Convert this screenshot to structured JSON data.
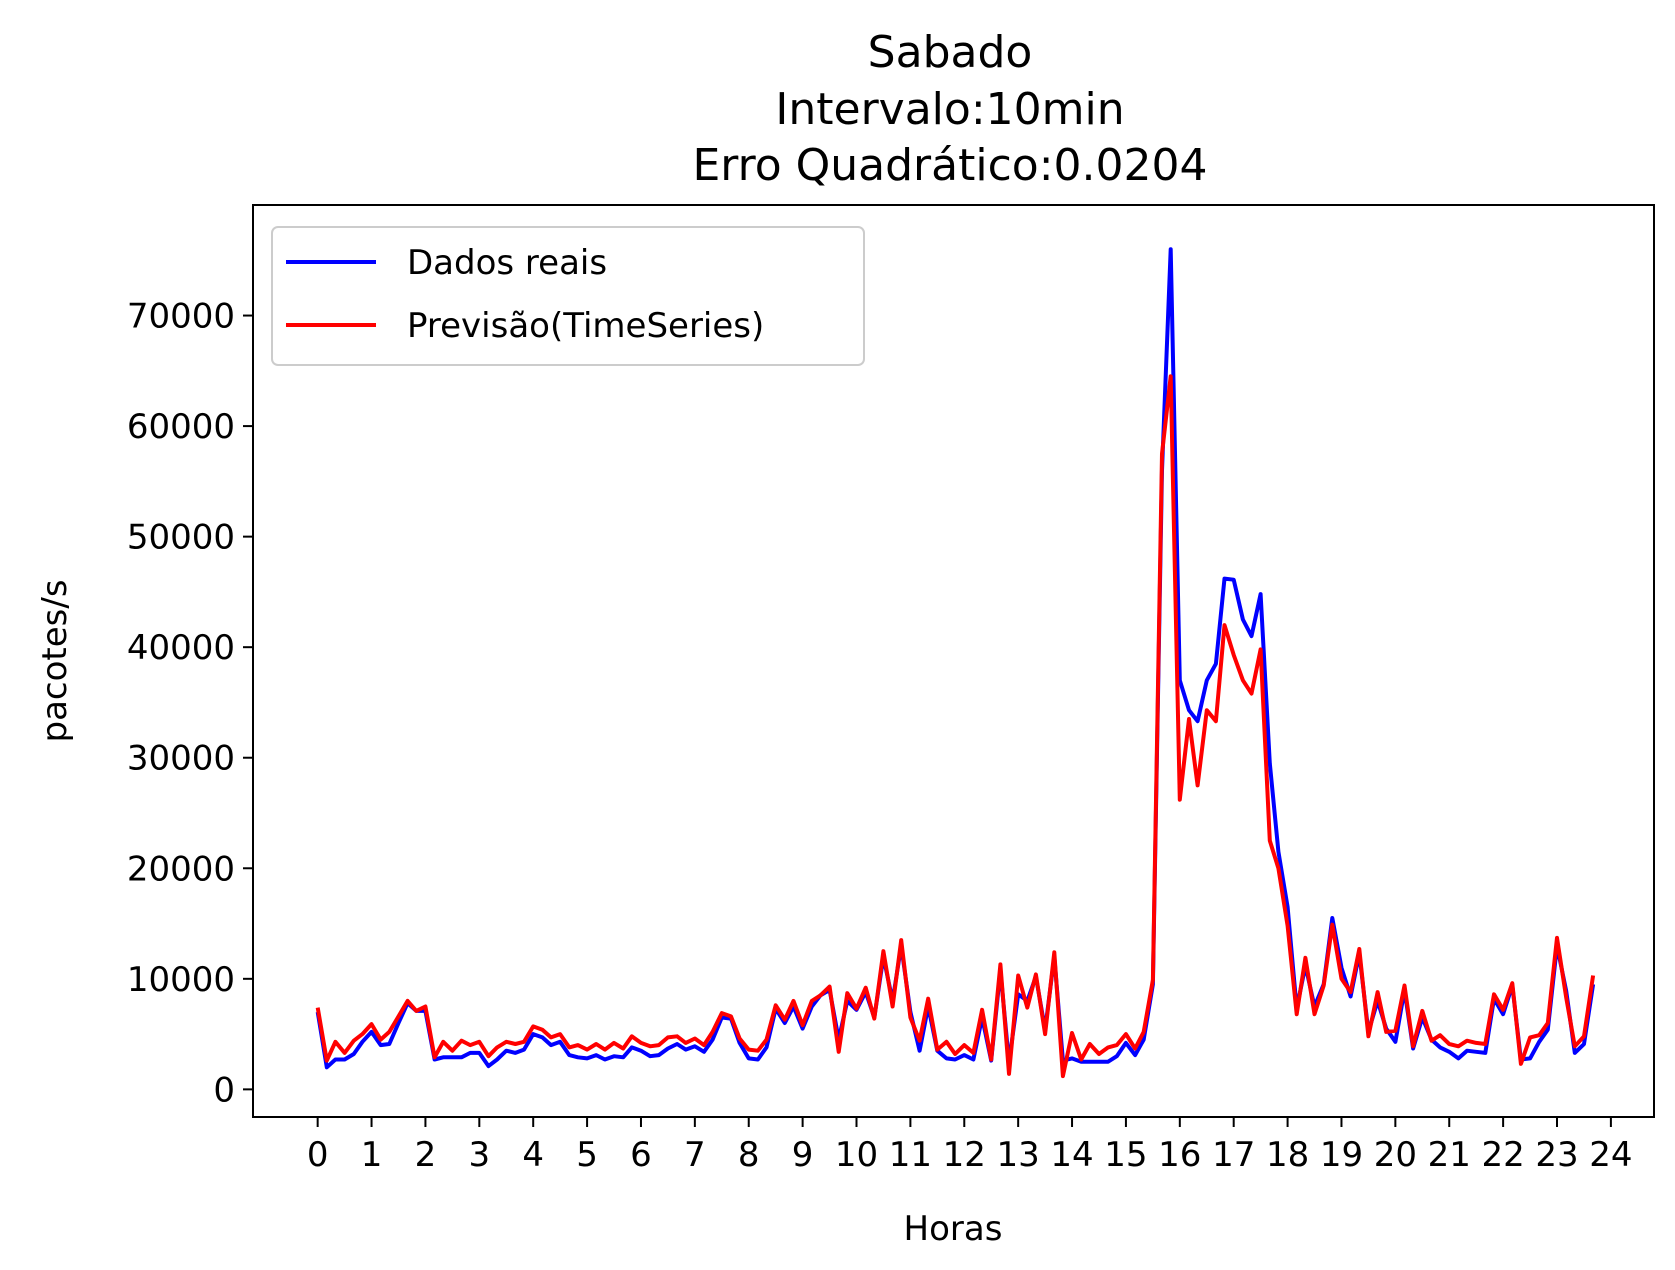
{
  "chart_data": {
    "type": "line",
    "title": [
      "Sabado",
      "Intervalo:10min",
      "Erro Quadrático:0.0204"
    ],
    "xlabel": "Horas",
    "ylabel": "pacotes/s",
    "xlim": [
      -1.2,
      24.8
    ],
    "ylim": [
      -2500,
      80000
    ],
    "xticks": [
      0,
      1,
      2,
      3,
      4,
      5,
      6,
      7,
      8,
      9,
      10,
      11,
      12,
      13,
      14,
      15,
      16,
      17,
      18,
      19,
      20,
      21,
      22,
      23,
      24
    ],
    "xtick_labels": [
      "0",
      "1",
      "2",
      "3",
      "4",
      "5",
      "6",
      "7",
      "8",
      "9",
      "10",
      "11",
      "12",
      "13",
      "14",
      "15",
      "16",
      "17",
      "18",
      "19",
      "20",
      "21",
      "22",
      "23",
      "24"
    ],
    "yticks": [
      0,
      10000,
      20000,
      30000,
      40000,
      50000,
      60000,
      70000
    ],
    "ytick_labels": [
      "0",
      "10000",
      "20000",
      "30000",
      "40000",
      "50000",
      "60000",
      "70000"
    ],
    "grid": false,
    "legend_position": "upper-left",
    "series": [
      {
        "name": "Dados reais",
        "color": "#0000ff",
        "points": [
          [
            0.0,
            7000
          ],
          [
            0.17,
            2000
          ],
          [
            0.33,
            2700
          ],
          [
            0.5,
            2700
          ],
          [
            0.67,
            3200
          ],
          [
            0.83,
            4300
          ],
          [
            1.0,
            5200
          ],
          [
            1.17,
            4000
          ],
          [
            1.33,
            4100
          ],
          [
            1.5,
            6000
          ],
          [
            1.67,
            7800
          ],
          [
            1.83,
            7100
          ],
          [
            2.0,
            7100
          ],
          [
            2.17,
            2700
          ],
          [
            2.33,
            2900
          ],
          [
            2.5,
            2900
          ],
          [
            2.67,
            2900
          ],
          [
            2.83,
            3300
          ],
          [
            3.0,
            3300
          ],
          [
            3.17,
            2100
          ],
          [
            3.33,
            2700
          ],
          [
            3.5,
            3500
          ],
          [
            3.67,
            3300
          ],
          [
            3.83,
            3600
          ],
          [
            4.0,
            5000
          ],
          [
            4.17,
            4700
          ],
          [
            4.33,
            4000
          ],
          [
            4.5,
            4300
          ],
          [
            4.67,
            3100
          ],
          [
            4.83,
            2900
          ],
          [
            5.0,
            2800
          ],
          [
            5.17,
            3100
          ],
          [
            5.33,
            2700
          ],
          [
            5.5,
            3000
          ],
          [
            5.67,
            2900
          ],
          [
            5.83,
            3800
          ],
          [
            6.0,
            3500
          ],
          [
            6.17,
            3000
          ],
          [
            6.33,
            3100
          ],
          [
            6.5,
            3700
          ],
          [
            6.67,
            4100
          ],
          [
            6.83,
            3600
          ],
          [
            7.0,
            3900
          ],
          [
            7.17,
            3400
          ],
          [
            7.33,
            4500
          ],
          [
            7.5,
            6500
          ],
          [
            7.67,
            6400
          ],
          [
            7.83,
            4200
          ],
          [
            8.0,
            2800
          ],
          [
            8.17,
            2700
          ],
          [
            8.33,
            3800
          ],
          [
            8.5,
            7300
          ],
          [
            8.67,
            6000
          ],
          [
            8.83,
            7500
          ],
          [
            9.0,
            5500
          ],
          [
            9.17,
            7500
          ],
          [
            9.33,
            8500
          ],
          [
            9.5,
            9000
          ],
          [
            9.67,
            4500
          ],
          [
            9.83,
            8000
          ],
          [
            10.0,
            7200
          ],
          [
            10.17,
            8800
          ],
          [
            10.33,
            6500
          ],
          [
            10.5,
            12000
          ],
          [
            10.67,
            8000
          ],
          [
            10.83,
            13000
          ],
          [
            11.0,
            7000
          ],
          [
            11.17,
            3500
          ],
          [
            11.33,
            7500
          ],
          [
            11.5,
            3500
          ],
          [
            11.67,
            2800
          ],
          [
            11.83,
            2700
          ],
          [
            12.0,
            3100
          ],
          [
            12.17,
            2700
          ],
          [
            12.33,
            6500
          ],
          [
            12.5,
            2600
          ],
          [
            12.67,
            10800
          ],
          [
            12.83,
            2400
          ],
          [
            13.0,
            8600
          ],
          [
            13.17,
            8000
          ],
          [
            13.33,
            10200
          ],
          [
            13.5,
            5400
          ],
          [
            13.67,
            12000
          ],
          [
            13.83,
            2600
          ],
          [
            14.0,
            2800
          ],
          [
            14.17,
            2500
          ],
          [
            14.33,
            2500
          ],
          [
            14.5,
            2500
          ],
          [
            14.67,
            2500
          ],
          [
            14.83,
            3000
          ],
          [
            15.0,
            4200
          ],
          [
            15.17,
            3100
          ],
          [
            15.33,
            4500
          ],
          [
            15.5,
            9500
          ],
          [
            15.67,
            56000
          ],
          [
            15.83,
            76000
          ],
          [
            16.0,
            37000
          ],
          [
            16.17,
            34300
          ],
          [
            16.33,
            33300
          ],
          [
            16.5,
            37000
          ],
          [
            16.67,
            38500
          ],
          [
            16.83,
            46200
          ],
          [
            17.0,
            46100
          ],
          [
            17.17,
            42500
          ],
          [
            17.33,
            41000
          ],
          [
            17.5,
            44800
          ],
          [
            17.67,
            29500
          ],
          [
            17.83,
            21500
          ],
          [
            18.0,
            16500
          ],
          [
            18.17,
            7300
          ],
          [
            18.33,
            11200
          ],
          [
            18.5,
            7500
          ],
          [
            18.67,
            9500
          ],
          [
            18.83,
            15500
          ],
          [
            19.0,
            11000
          ],
          [
            19.17,
            8400
          ],
          [
            19.33,
            12300
          ],
          [
            19.5,
            5200
          ],
          [
            19.67,
            8000
          ],
          [
            19.83,
            5500
          ],
          [
            20.0,
            4300
          ],
          [
            20.17,
            9000
          ],
          [
            20.33,
            3700
          ],
          [
            20.5,
            6500
          ],
          [
            20.67,
            4500
          ],
          [
            20.83,
            3800
          ],
          [
            21.0,
            3400
          ],
          [
            21.17,
            2800
          ],
          [
            21.33,
            3500
          ],
          [
            21.5,
            3400
          ],
          [
            21.67,
            3300
          ],
          [
            21.83,
            8200
          ],
          [
            22.0,
            6800
          ],
          [
            22.17,
            9400
          ],
          [
            22.33,
            2700
          ],
          [
            22.5,
            2800
          ],
          [
            22.67,
            4300
          ],
          [
            22.83,
            5400
          ],
          [
            23.0,
            13000
          ],
          [
            23.17,
            8900
          ],
          [
            23.33,
            3300
          ],
          [
            23.5,
            4100
          ],
          [
            23.67,
            9500
          ]
        ]
      },
      {
        "name": "Previsão(TimeSeries)",
        "color": "#ff0000",
        "points": [
          [
            0.0,
            7400
          ],
          [
            0.17,
            2600
          ],
          [
            0.33,
            4300
          ],
          [
            0.5,
            3300
          ],
          [
            0.67,
            4400
          ],
          [
            0.83,
            5000
          ],
          [
            1.0,
            5900
          ],
          [
            1.17,
            4500
          ],
          [
            1.33,
            5200
          ],
          [
            1.5,
            6600
          ],
          [
            1.67,
            8000
          ],
          [
            1.83,
            7100
          ],
          [
            2.0,
            7500
          ],
          [
            2.17,
            2900
          ],
          [
            2.33,
            4300
          ],
          [
            2.5,
            3500
          ],
          [
            2.67,
            4400
          ],
          [
            2.83,
            4000
          ],
          [
            3.0,
            4300
          ],
          [
            3.17,
            3000
          ],
          [
            3.33,
            3800
          ],
          [
            3.5,
            4300
          ],
          [
            3.67,
            4100
          ],
          [
            3.83,
            4300
          ],
          [
            4.0,
            5700
          ],
          [
            4.17,
            5400
          ],
          [
            4.33,
            4700
          ],
          [
            4.5,
            5000
          ],
          [
            4.67,
            3800
          ],
          [
            4.83,
            4000
          ],
          [
            5.0,
            3600
          ],
          [
            5.17,
            4100
          ],
          [
            5.33,
            3600
          ],
          [
            5.5,
            4200
          ],
          [
            5.67,
            3700
          ],
          [
            5.83,
            4800
          ],
          [
            6.0,
            4200
          ],
          [
            6.17,
            3900
          ],
          [
            6.33,
            4000
          ],
          [
            6.5,
            4700
          ],
          [
            6.67,
            4800
          ],
          [
            6.83,
            4200
          ],
          [
            7.0,
            4600
          ],
          [
            7.17,
            4000
          ],
          [
            7.33,
            5200
          ],
          [
            7.5,
            6900
          ],
          [
            7.67,
            6600
          ],
          [
            7.83,
            4600
          ],
          [
            8.0,
            3600
          ],
          [
            8.17,
            3500
          ],
          [
            8.33,
            4500
          ],
          [
            8.5,
            7600
          ],
          [
            8.67,
            6300
          ],
          [
            8.83,
            8000
          ],
          [
            9.0,
            5800
          ],
          [
            9.17,
            8000
          ],
          [
            9.33,
            8500
          ],
          [
            9.5,
            9300
          ],
          [
            9.67,
            3400
          ],
          [
            9.83,
            8700
          ],
          [
            10.0,
            7300
          ],
          [
            10.17,
            9200
          ],
          [
            10.33,
            6400
          ],
          [
            10.5,
            12500
          ],
          [
            10.67,
            7500
          ],
          [
            10.83,
            13500
          ],
          [
            11.0,
            6500
          ],
          [
            11.17,
            4400
          ],
          [
            11.33,
            8200
          ],
          [
            11.5,
            3600
          ],
          [
            11.67,
            4300
          ],
          [
            11.83,
            3200
          ],
          [
            12.0,
            4000
          ],
          [
            12.17,
            3300
          ],
          [
            12.33,
            7200
          ],
          [
            12.5,
            2700
          ],
          [
            12.67,
            11300
          ],
          [
            12.83,
            1400
          ],
          [
            13.0,
            10300
          ],
          [
            13.17,
            7400
          ],
          [
            13.33,
            10400
          ],
          [
            13.5,
            5000
          ],
          [
            13.67,
            12400
          ],
          [
            13.83,
            1200
          ],
          [
            14.0,
            5100
          ],
          [
            14.17,
            2700
          ],
          [
            14.33,
            4100
          ],
          [
            14.5,
            3200
          ],
          [
            14.67,
            3800
          ],
          [
            14.83,
            4000
          ],
          [
            15.0,
            5000
          ],
          [
            15.17,
            3700
          ],
          [
            15.33,
            5200
          ],
          [
            15.5,
            9900
          ],
          [
            15.67,
            57500
          ],
          [
            15.83,
            64500
          ],
          [
            16.0,
            26200
          ],
          [
            16.17,
            33500
          ],
          [
            16.33,
            27500
          ],
          [
            16.5,
            34300
          ],
          [
            16.67,
            33300
          ],
          [
            16.83,
            42000
          ],
          [
            17.0,
            39300
          ],
          [
            17.17,
            37000
          ],
          [
            17.33,
            35800
          ],
          [
            17.5,
            39800
          ],
          [
            17.67,
            22500
          ],
          [
            17.83,
            20000
          ],
          [
            18.0,
            14800
          ],
          [
            18.17,
            6800
          ],
          [
            18.33,
            11900
          ],
          [
            18.5,
            6800
          ],
          [
            18.67,
            9400
          ],
          [
            18.83,
            14900
          ],
          [
            19.0,
            10000
          ],
          [
            19.17,
            8800
          ],
          [
            19.33,
            12700
          ],
          [
            19.5,
            4800
          ],
          [
            19.67,
            8800
          ],
          [
            19.83,
            5200
          ],
          [
            20.0,
            5300
          ],
          [
            20.17,
            9400
          ],
          [
            20.33,
            3900
          ],
          [
            20.5,
            7100
          ],
          [
            20.67,
            4400
          ],
          [
            20.83,
            4900
          ],
          [
            21.0,
            4100
          ],
          [
            21.17,
            3900
          ],
          [
            21.33,
            4400
          ],
          [
            21.5,
            4200
          ],
          [
            21.67,
            4100
          ],
          [
            21.83,
            8600
          ],
          [
            22.0,
            7200
          ],
          [
            22.17,
            9600
          ],
          [
            22.33,
            2300
          ],
          [
            22.5,
            4700
          ],
          [
            22.67,
            4900
          ],
          [
            22.83,
            6000
          ],
          [
            23.0,
            13700
          ],
          [
            23.17,
            8300
          ],
          [
            23.33,
            3900
          ],
          [
            23.5,
            4800
          ],
          [
            23.67,
            10300
          ]
        ]
      }
    ]
  }
}
